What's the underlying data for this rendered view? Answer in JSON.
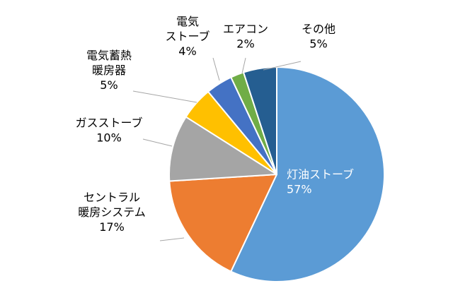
{
  "chart_data": {
    "type": "pie",
    "title": "",
    "start_angle_deg": 0,
    "direction": "clockwise",
    "slices": [
      {
        "label_lines": [
          "灯油ストーブ"
        ],
        "value_label": "57%",
        "value": 57,
        "color": "#5b9bd5",
        "label_color": "#ffffff",
        "label_position": "inside"
      },
      {
        "label_lines": [
          "セントラル",
          "暖房システム"
        ],
        "value_label": "17%",
        "value": 17,
        "color": "#ed7d31",
        "label_color": "#000000",
        "label_position": "outside"
      },
      {
        "label_lines": [
          "ガスストーブ"
        ],
        "value_label": "10%",
        "value": 10,
        "color": "#a5a5a5",
        "label_color": "#000000",
        "label_position": "outside"
      },
      {
        "label_lines": [
          "電気蓄熱",
          "暖房器"
        ],
        "value_label": "5%",
        "value": 5,
        "color": "#ffc000",
        "label_color": "#000000",
        "label_position": "outside"
      },
      {
        "label_lines": [
          "電気",
          "ストーブ"
        ],
        "value_label": "4%",
        "value": 4,
        "color": "#4472c4",
        "label_color": "#000000",
        "label_position": "outside"
      },
      {
        "label_lines": [
          "エアコン"
        ],
        "value_label": "2%",
        "value": 2,
        "color": "#70ad47",
        "label_color": "#000000",
        "label_position": "outside"
      },
      {
        "label_lines": [
          "その他"
        ],
        "value_label": "5%",
        "value": 5,
        "color": "#255e91",
        "label_color": "#000000",
        "label_position": "outside"
      }
    ]
  }
}
